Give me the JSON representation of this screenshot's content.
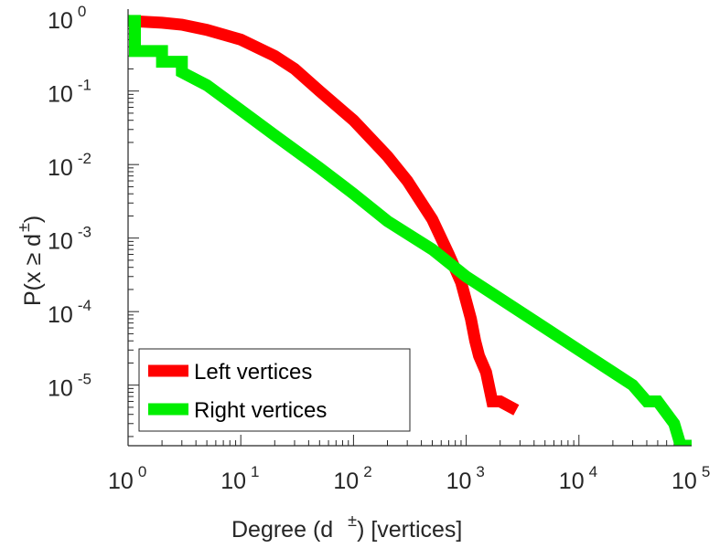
{
  "chart_data": {
    "type": "line",
    "scale": "log-log",
    "title": "",
    "xlabel": {
      "prefix": "Degree (d",
      "sup": "±",
      "suffix": ") [vertices]"
    },
    "ylabel": {
      "prefix": "P(x ≥ d",
      "sup": "±",
      "suffix": ")"
    },
    "xlim": [
      1,
      100000
    ],
    "ylim": [
      1.5e-06,
      1.3
    ],
    "x_ticks": [
      {
        "base": "10",
        "exp": "0",
        "value": 1
      },
      {
        "base": "10",
        "exp": "1",
        "value": 10
      },
      {
        "base": "10",
        "exp": "2",
        "value": 100
      },
      {
        "base": "10",
        "exp": "3",
        "value": 1000
      },
      {
        "base": "10",
        "exp": "4",
        "value": 10000
      },
      {
        "base": "10",
        "exp": "5",
        "value": 100000
      }
    ],
    "y_ticks": [
      {
        "base": "10",
        "exp": "0",
        "value": 1
      },
      {
        "base": "10",
        "exp": "-1",
        "value": 0.1
      },
      {
        "base": "10",
        "exp": "-2",
        "value": 0.01
      },
      {
        "base": "10",
        "exp": "-3",
        "value": 0.001
      },
      {
        "base": "10",
        "exp": "-4",
        "value": 0.0001
      },
      {
        "base": "10",
        "exp": "-5",
        "value": 1e-05
      }
    ],
    "legend_position": "bottom-left",
    "series": [
      {
        "name": "Left vertices",
        "color": "#ff0000",
        "x": [
          1,
          2,
          3,
          5,
          10,
          20,
          30,
          50,
          100,
          200,
          300,
          500,
          700,
          900,
          1100,
          1200,
          1300,
          1500,
          1700,
          2000,
          2500
        ],
        "y": [
          0.9,
          0.85,
          0.8,
          0.68,
          0.5,
          0.3,
          0.2,
          0.1,
          0.04,
          0.013,
          0.006,
          0.0018,
          0.0006,
          0.00025,
          8e-05,
          4e-05,
          2.5e-05,
          1.5e-05,
          6e-06,
          6e-06,
          5e-06
        ]
      },
      {
        "name": "Right vertices",
        "color": "#00ee00",
        "x": [
          1,
          1.15,
          1.15,
          2,
          2,
          3,
          3,
          5,
          10,
          20,
          50,
          100,
          200,
          500,
          1000,
          2000,
          5000,
          10000,
          20000,
          30000,
          40000,
          50000,
          70000,
          80000,
          90000
        ],
        "y": [
          0.9,
          0.9,
          0.35,
          0.35,
          0.25,
          0.25,
          0.18,
          0.12,
          0.055,
          0.025,
          0.009,
          0.004,
          0.0017,
          0.0007,
          0.0003,
          0.00015,
          6e-05,
          3e-05,
          1.5e-05,
          1e-05,
          6e-06,
          6e-06,
          3e-06,
          1.5e-06,
          1.5e-06
        ]
      }
    ]
  }
}
